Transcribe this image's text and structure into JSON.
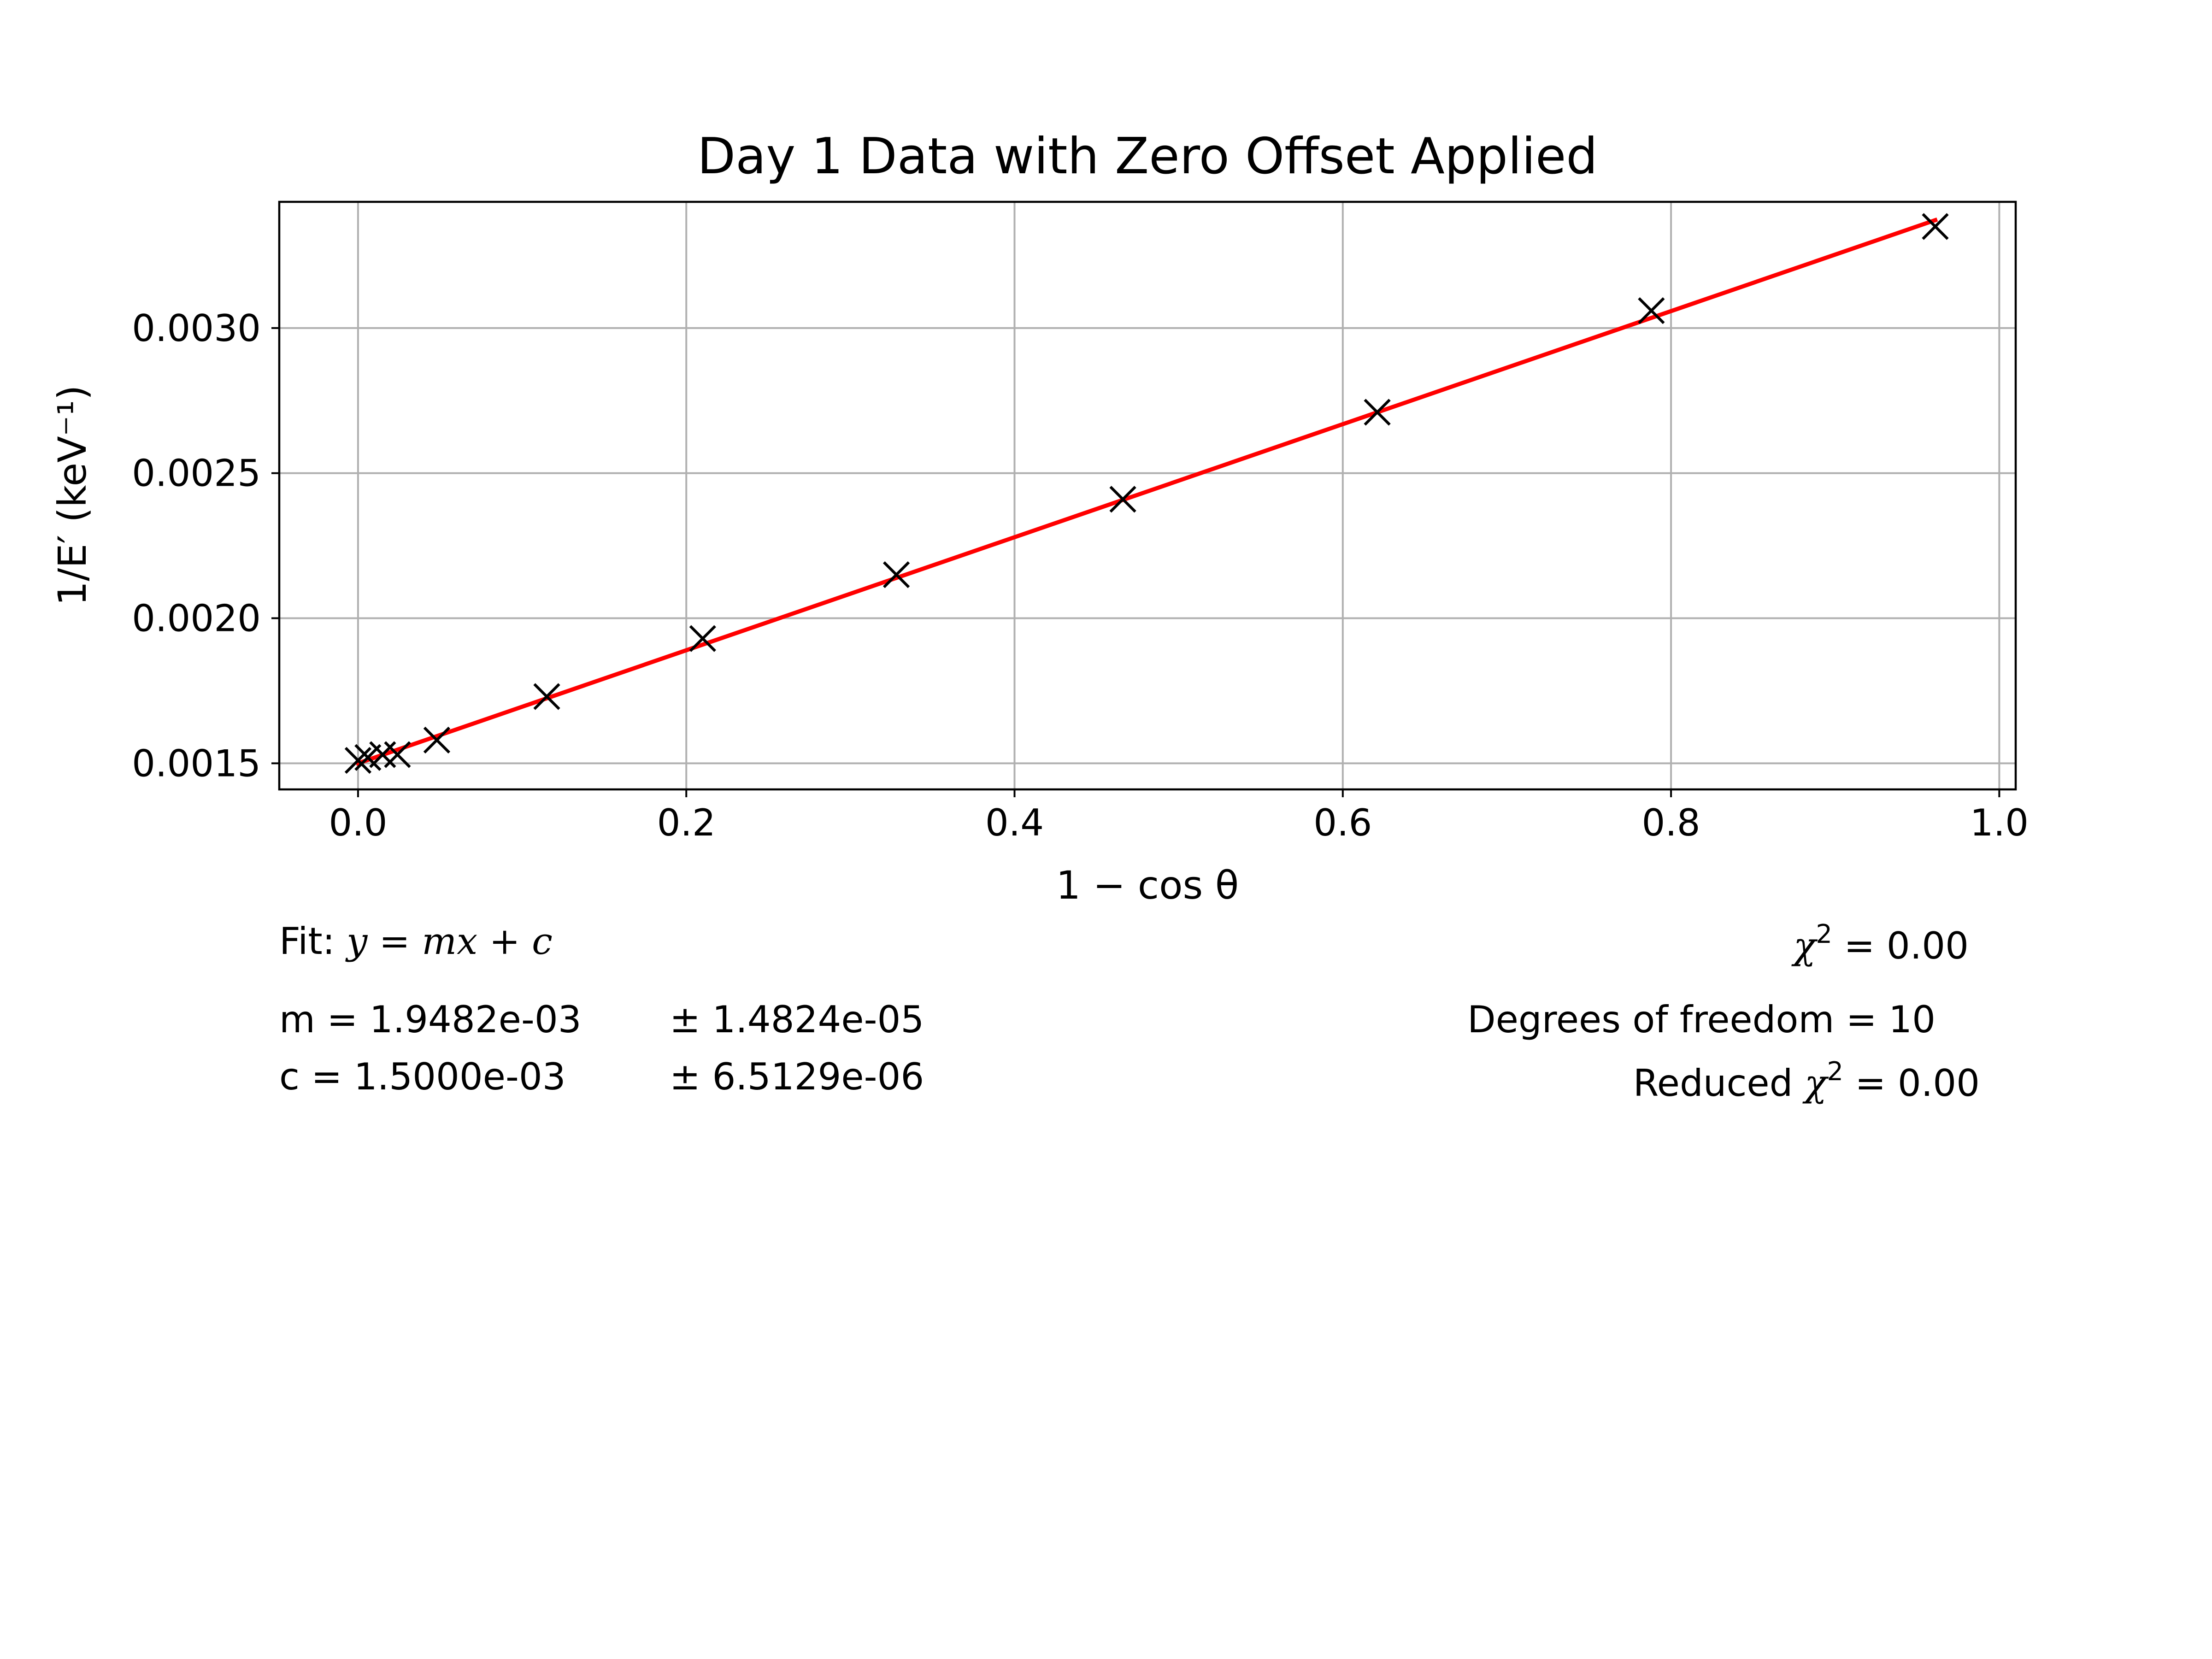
{
  "chart_data": {
    "type": "scatter",
    "title": "Day 1 Data with Zero Offset Applied",
    "xlabel": "1 − cos θ",
    "ylabel": "1/E′ (keV⁻¹)",
    "xlim": [
      -0.048,
      1.01
    ],
    "ylim": [
      0.00141,
      0.003435
    ],
    "x_ticks": [
      0.0,
      0.2,
      0.4,
      0.6,
      0.8,
      1.0
    ],
    "x_tick_labels": [
      "0.0",
      "0.2",
      "0.4",
      "0.6",
      "0.8",
      "1.0"
    ],
    "y_ticks": [
      0.0015,
      0.002,
      0.0025,
      0.003
    ],
    "y_tick_labels": [
      "0.0015",
      "0.0020",
      "0.0025",
      "0.0030"
    ],
    "grid": true,
    "series": [
      {
        "marker": "x",
        "color": "#000000",
        "points": [
          {
            "x": 0.0,
            "y": 0.00151
          },
          {
            "x": 0.006,
            "y": 0.00152
          },
          {
            "x": 0.015,
            "y": 0.00153
          },
          {
            "x": 0.024,
            "y": 0.00153
          },
          {
            "x": 0.048,
            "y": 0.00158
          },
          {
            "x": 0.115,
            "y": 0.00173
          },
          {
            "x": 0.21,
            "y": 0.00193
          },
          {
            "x": 0.328,
            "y": 0.00215
          },
          {
            "x": 0.466,
            "y": 0.00241
          },
          {
            "x": 0.621,
            "y": 0.00271
          },
          {
            "x": 0.788,
            "y": 0.00306
          },
          {
            "x": 0.961,
            "y": 0.00335
          }
        ]
      },
      {
        "type": "line",
        "color": "#ff0000",
        "x": [
          0.0,
          0.961
        ],
        "y": [
          0.0015,
          0.003372
        ]
      }
    ]
  },
  "fit_info": {
    "fit_prefix": "Fit: ",
    "fit_equation": "y = mx + c",
    "m_label": "m = 1.9482e-03",
    "m_error": "± 1.4824e-05",
    "c_label": "c = 1.5000e-03",
    "c_error": "± 6.5129e-06",
    "chi2_symbol": "χ",
    "chi2_sup": "2",
    "chi2_value": " = 0.00",
    "dof_text": "Degrees of freedom = 10",
    "reduced_prefix": "Reduced ",
    "reduced_symbol": "χ",
    "reduced_sup": "2",
    "reduced_value": " = 0.00"
  }
}
